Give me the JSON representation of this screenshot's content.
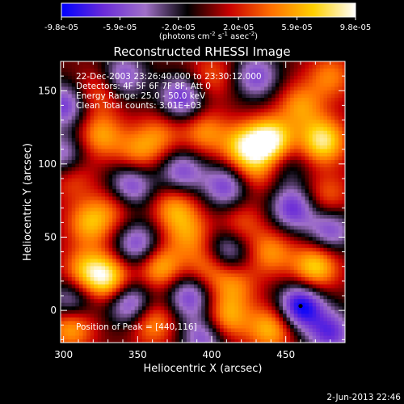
{
  "colorbar": {
    "tick_labels": [
      "-9.8e-05",
      "-5.9e-05",
      "-2.0e-05",
      "2.0e-05",
      "5.9e-05",
      "9.8e-05"
    ],
    "tick_values": [
      -9.8e-05,
      -5.9e-05,
      -2e-05,
      2e-05,
      5.9e-05,
      9.8e-05
    ],
    "range": [
      -9.8e-05,
      9.8e-05
    ],
    "unit_prefix": "(photons cm",
    "unit_sup1": "-2",
    "unit_mid": " s",
    "unit_sup2": "-1",
    "unit_suffix": " asec",
    "unit_sup3": "-2",
    "unit_close": ")",
    "colors": [
      "#0000ff",
      "#6a2bd8",
      "#a070c8",
      "#000000",
      "#c80000",
      "#ff7000",
      "#ffd000",
      "#ffffff"
    ]
  },
  "chart_data": {
    "type": "heatmap",
    "title": "Reconstructed RHESSI Image",
    "xlabel": "Heliocentric X (arcsec)",
    "ylabel": "Heliocentric Y (arcsec)",
    "xlim": [
      298,
      490
    ],
    "ylim": [
      -22,
      170
    ],
    "xticks": [
      300,
      350,
      400,
      450
    ],
    "yticks": [
      0,
      50,
      100,
      150
    ],
    "info_lines": [
      "22-Dec-2003 23:26:40.000 to 23:30:12.000",
      "Detectors: 4F 5F 6F 7F 8F, Att 0",
      "Energy Range: 25.0 - 50.0 keV",
      "Clean     Total counts: 3.01E+03"
    ],
    "peak_label": "Position of Peak = [440,116]",
    "peak": [
      440,
      116
    ],
    "marker": [
      460,
      3
    ],
    "blobs": [
      {
        "x": 440,
        "y": 116,
        "v": 9.8e-05
      },
      {
        "x": 475,
        "y": 116,
        "v": 8.5e-05
      },
      {
        "x": 422,
        "y": 112,
        "v": 7e-05
      },
      {
        "x": 395,
        "y": 122,
        "v": 5e-05
      },
      {
        "x": 365,
        "y": 120,
        "v": 4e-05
      },
      {
        "x": 350,
        "y": 108,
        "v": 4.5e-05
      },
      {
        "x": 430,
        "y": 95,
        "v": 4e-05
      },
      {
        "x": 325,
        "y": 120,
        "v": 5.5e-05
      },
      {
        "x": 305,
        "y": 92,
        "v": 4e-05
      },
      {
        "x": 318,
        "y": 60,
        "v": 6e-05
      },
      {
        "x": 335,
        "y": 72,
        "v": 3.5e-05
      },
      {
        "x": 385,
        "y": 52,
        "v": 4.5e-05
      },
      {
        "x": 375,
        "y": 70,
        "v": 5.5e-05
      },
      {
        "x": 420,
        "y": 60,
        "v": 3.5e-05
      },
      {
        "x": 440,
        "y": 40,
        "v": 5e-05
      },
      {
        "x": 470,
        "y": 30,
        "v": 7.5e-05
      },
      {
        "x": 478,
        "y": 78,
        "v": 4e-05
      },
      {
        "x": 330,
        "y": 22,
        "v": 8e-05
      },
      {
        "x": 315,
        "y": 28,
        "v": 5.5e-05
      },
      {
        "x": 365,
        "y": 30,
        "v": 6.5e-05
      },
      {
        "x": 398,
        "y": 30,
        "v": 5e-05
      },
      {
        "x": 415,
        "y": 18,
        "v": 4.5e-05
      },
      {
        "x": 360,
        "y": -8,
        "v": 5.5e-05
      },
      {
        "x": 410,
        "y": -5,
        "v": 6e-05
      },
      {
        "x": 440,
        "y": -12,
        "v": 6.5e-05
      },
      {
        "x": 305,
        "y": -10,
        "v": 7e-05
      },
      {
        "x": 325,
        "y": 150,
        "v": 4e-05
      },
      {
        "x": 400,
        "y": 160,
        "v": 3.5e-05
      },
      {
        "x": 460,
        "y": 140,
        "v": 5e-05
      },
      {
        "x": 480,
        "y": 160,
        "v": 4.5e-05
      },
      {
        "x": 340,
        "y": 160,
        "v": -6e-05
      },
      {
        "x": 380,
        "y": 145,
        "v": -7e-05
      },
      {
        "x": 430,
        "y": 160,
        "v": -6e-05
      },
      {
        "x": 300,
        "y": 140,
        "v": -6.5e-05
      },
      {
        "x": 300,
        "y": 105,
        "v": -6e-05
      },
      {
        "x": 345,
        "y": 85,
        "v": -7e-05
      },
      {
        "x": 380,
        "y": 95,
        "v": -6e-05
      },
      {
        "x": 410,
        "y": 85,
        "v": -6.5e-05
      },
      {
        "x": 455,
        "y": 70,
        "v": -7e-05
      },
      {
        "x": 480,
        "y": 55,
        "v": -6e-05
      },
      {
        "x": 350,
        "y": 45,
        "v": -6.5e-05
      },
      {
        "x": 410,
        "y": 40,
        "v": -6e-05
      },
      {
        "x": 305,
        "y": 5,
        "v": -6e-05
      },
      {
        "x": 345,
        "y": 5,
        "v": -7e-05
      },
      {
        "x": 385,
        "y": 10,
        "v": -6.5e-05
      },
      {
        "x": 460,
        "y": 3,
        "v": -9.8e-05
      },
      {
        "x": 480,
        "y": -15,
        "v": -7e-05
      },
      {
        "x": 395,
        "y": -18,
        "v": -6e-05
      },
      {
        "x": 450,
        "y": 100,
        "v": -3e-05
      }
    ]
  },
  "timestamp": "2-Jun-2013 22:46"
}
